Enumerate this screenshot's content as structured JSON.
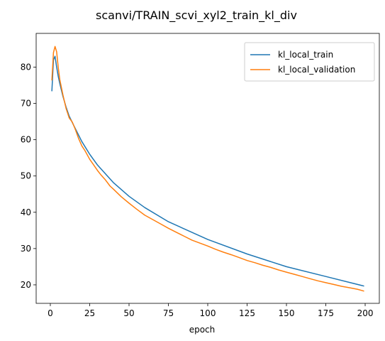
{
  "chart_data": {
    "type": "line",
    "title": "scanvi/TRAIN_scvi_xyl2_train_kl_div",
    "xlabel": "epoch",
    "ylabel": "",
    "xlim": [
      -9,
      209
    ],
    "ylim": [
      14.9,
      89.3
    ],
    "xticks": [
      0,
      25,
      50,
      75,
      100,
      125,
      150,
      175,
      200
    ],
    "yticks": [
      20,
      30,
      40,
      50,
      60,
      70,
      80
    ],
    "grid": false,
    "legend_position": "top-right",
    "series": [
      {
        "name": "kl_local_train",
        "color": "#1f77b4",
        "x": [
          1,
          2,
          3,
          4,
          5,
          6,
          8,
          10,
          12,
          15,
          20,
          25,
          30,
          40,
          50,
          60,
          75,
          100,
          125,
          150,
          175,
          199
        ],
        "y": [
          73.5,
          82.0,
          83.0,
          80.0,
          77.5,
          75.5,
          72.0,
          69.0,
          66.5,
          63.8,
          59.5,
          56.0,
          53.0,
          48.2,
          44.4,
          41.3,
          37.4,
          32.5,
          28.5,
          25.0,
          22.3,
          19.7
        ]
      },
      {
        "name": "kl_local_validation",
        "color": "#ff7f0e",
        "x": [
          1,
          2,
          3,
          4,
          5,
          6,
          8,
          10,
          12,
          14,
          16,
          18,
          20,
          22,
          25,
          27,
          30,
          32,
          35,
          38,
          40,
          45,
          50,
          55,
          60,
          65,
          70,
          75,
          80,
          85,
          90,
          95,
          100,
          105,
          110,
          115,
          120,
          125,
          130,
          135,
          140,
          145,
          150,
          155,
          160,
          165,
          170,
          175,
          180,
          185,
          190,
          195,
          199
        ],
        "y": [
          76.5,
          84.0,
          85.7,
          84.2,
          80.0,
          76.6,
          72.4,
          68.6,
          66.0,
          64.8,
          62.7,
          60.3,
          58.3,
          57.0,
          54.6,
          53.4,
          51.5,
          50.4,
          48.9,
          47.2,
          46.4,
          44.3,
          42.5,
          40.8,
          39.2,
          38.0,
          36.8,
          35.6,
          34.5,
          33.4,
          32.3,
          31.5,
          30.7,
          29.8,
          29.0,
          28.3,
          27.5,
          26.7,
          26.1,
          25.4,
          24.8,
          24.1,
          23.5,
          22.9,
          22.3,
          21.7,
          21.1,
          20.6,
          20.1,
          19.6,
          19.2,
          18.8,
          18.3
        ]
      }
    ]
  }
}
